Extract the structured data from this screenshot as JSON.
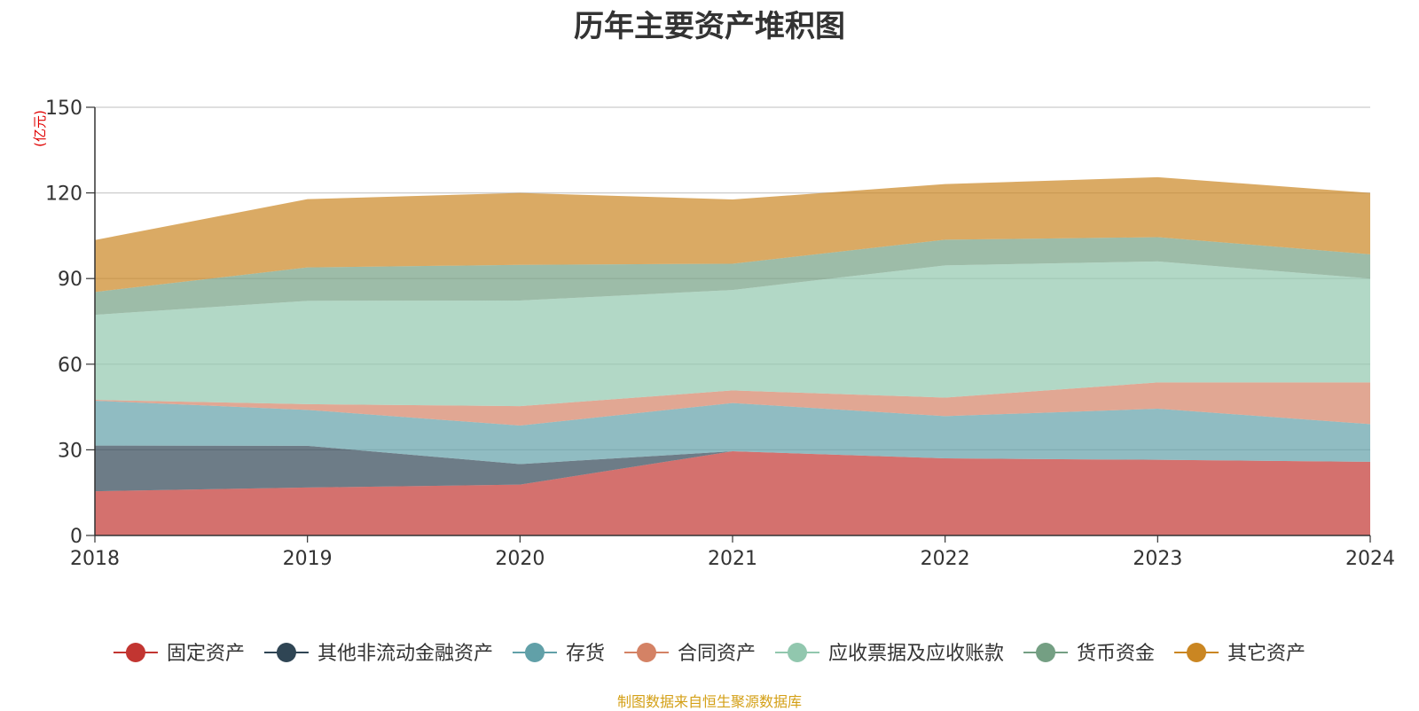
{
  "title": "历年主要资产堆积图",
  "unit_label": "(亿元)",
  "source": "制图数据来自恒生聚源数据库",
  "chart_data": {
    "type": "area",
    "stacked": true,
    "categories": [
      "2018",
      "2019",
      "2020",
      "2021",
      "2022",
      "2023",
      "2024"
    ],
    "ylim": [
      0,
      150
    ],
    "yticks": [
      0,
      30,
      60,
      90,
      120,
      150
    ],
    "grid": true,
    "legend_position": "bottom",
    "series": [
      {
        "name": "固定资产",
        "color": "#c23531",
        "values": [
          15.5,
          16.8,
          17.8,
          29.5,
          27.0,
          26.5,
          25.8
        ]
      },
      {
        "name": "其他非流动金融资产",
        "color": "#2f4554",
        "values": [
          16.0,
          14.6,
          7.2,
          0.0,
          0.0,
          0.0,
          0.0
        ]
      },
      {
        "name": "存货",
        "color": "#61a0a8",
        "values": [
          15.7,
          12.6,
          13.5,
          16.9,
          14.8,
          17.9,
          13.2
        ]
      },
      {
        "name": "合同资产",
        "color": "#d48265",
        "values": [
          0.3,
          2.0,
          6.8,
          4.4,
          6.5,
          9.2,
          14.6
        ]
      },
      {
        "name": "应收票据及应收账款",
        "color": "#91c7ae",
        "values": [
          29.8,
          36.2,
          37.0,
          35.2,
          46.3,
          42.4,
          36.4
        ]
      },
      {
        "name": "货币资金",
        "color": "#749f83",
        "values": [
          8.0,
          11.7,
          12.5,
          9.2,
          9.0,
          8.5,
          8.5
        ]
      },
      {
        "name": "其它资产",
        "color": "#ca8622",
        "values": [
          18.2,
          23.9,
          25.2,
          22.5,
          19.5,
          21.0,
          21.5
        ]
      }
    ]
  }
}
